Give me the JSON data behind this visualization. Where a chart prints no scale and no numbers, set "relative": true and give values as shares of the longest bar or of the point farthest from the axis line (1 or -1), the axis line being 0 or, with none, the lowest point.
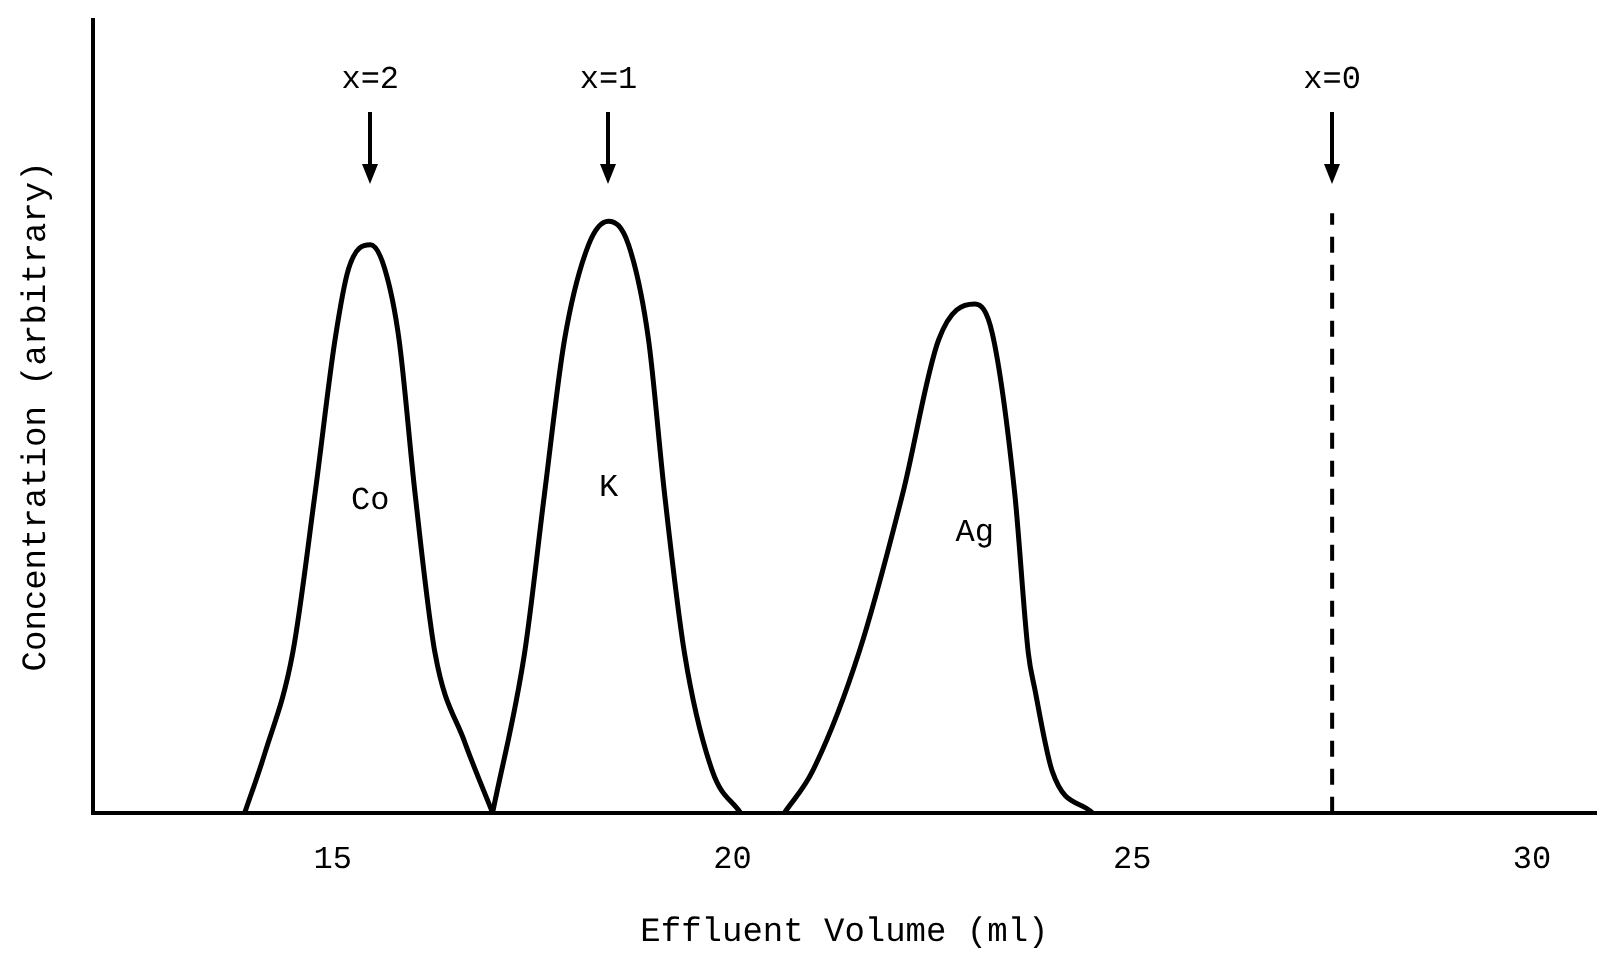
{
  "chart_data": {
    "type": "line",
    "relative": true,
    "xlabel": "Effluent Volume (ml)",
    "ylabel": "Concentration (arbitrary)",
    "xlim": [
      12,
      30.8
    ],
    "xticks": [
      15,
      20,
      25,
      30
    ],
    "grid": false,
    "legend": false,
    "marker": "none",
    "line_style": "solid",
    "series": [
      {
        "name": "Co",
        "color": "#000000",
        "x": [
          13.9,
          14.15,
          14.5,
          14.78,
          15.03,
          15.2,
          15.47,
          15.65,
          15.83,
          16.03,
          16.28,
          16.65,
          17.0
        ],
        "values": [
          0,
          0.1,
          0.27,
          0.54,
          0.8,
          0.92,
          0.96,
          0.92,
          0.8,
          0.54,
          0.27,
          0.12,
          0
        ]
      },
      {
        "name": "K",
        "color": "#000000",
        "x": [
          17.0,
          17.4,
          17.65,
          17.9,
          18.2,
          18.45,
          18.7,
          18.95,
          19.15,
          19.4,
          19.75,
          20.1
        ],
        "values": [
          0,
          0.27,
          0.54,
          0.8,
          0.96,
          1,
          0.96,
          0.8,
          0.54,
          0.27,
          0.07,
          0
        ]
      },
      {
        "name": "Ag",
        "color": "#000000",
        "x": [
          20.65,
          21.0,
          21.58,
          22.13,
          22.58,
          23.03,
          23.25,
          23.53,
          23.7,
          23.78,
          24.0,
          24.5
        ],
        "values": [
          0,
          0.07,
          0.27,
          0.54,
          0.8,
          0.86,
          0.81,
          0.54,
          0.27,
          0.21,
          0.07,
          0
        ]
      }
    ],
    "ref_lines": [
      {
        "axis": "x",
        "value": 27.5,
        "line_style": "dashed",
        "color": "#000000"
      }
    ],
    "annotations": [
      "x=2",
      "x=1",
      "x=0"
    ]
  }
}
